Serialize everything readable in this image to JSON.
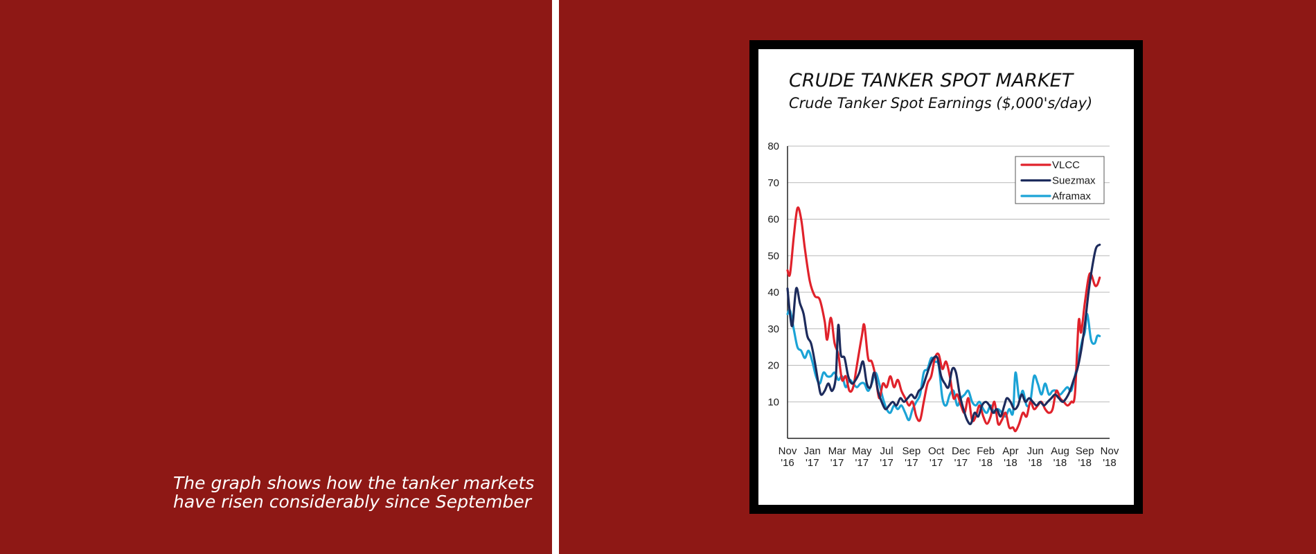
{
  "caption": {
    "line1": "The graph shows how the tanker markets",
    "line2": "have risen considerably since September"
  },
  "chart_data": {
    "type": "line",
    "title": "CRUDE TANKER SPOT MARKET",
    "subtitle": "Crude Tanker Spot Earnings ($,000's/day)",
    "xlabel": "",
    "ylabel": "",
    "ylim": [
      0,
      80
    ],
    "y_ticks": [
      10,
      20,
      30,
      40,
      50,
      60,
      70,
      80
    ],
    "grid": true,
    "legend_position": "top-right",
    "x_tick_labels": [
      {
        "month": "Nov",
        "year": "'16"
      },
      {
        "month": "Jan",
        "year": "'17"
      },
      {
        "month": "Mar",
        "year": "'17"
      },
      {
        "month": "May",
        "year": "'17"
      },
      {
        "month": "Jul",
        "year": "'17"
      },
      {
        "month": "Sep",
        "year": "'17"
      },
      {
        "month": "Oct",
        "year": "'17"
      },
      {
        "month": "Dec",
        "year": "'17"
      },
      {
        "month": "Feb",
        "year": "'18"
      },
      {
        "month": "Apr",
        "year": "'18"
      },
      {
        "month": "Jun",
        "year": "'18"
      },
      {
        "month": "Aug",
        "year": "'18"
      },
      {
        "month": "Sep",
        "year": "'18"
      },
      {
        "month": "Nov",
        "year": "'18"
      }
    ],
    "series": [
      {
        "name": "VLCC",
        "color": "#e0222b",
        "values": [
          [
            0,
            46
          ],
          [
            0.1,
            45
          ],
          [
            0.25,
            55
          ],
          [
            0.4,
            63
          ],
          [
            0.55,
            60
          ],
          [
            0.7,
            52
          ],
          [
            0.9,
            43
          ],
          [
            1.1,
            39
          ],
          [
            1.3,
            38
          ],
          [
            1.5,
            32
          ],
          [
            1.6,
            27
          ],
          [
            1.75,
            33
          ],
          [
            1.9,
            26
          ],
          [
            2.05,
            23
          ],
          [
            2.2,
            16
          ],
          [
            2.35,
            17
          ],
          [
            2.5,
            13
          ],
          [
            2.65,
            14
          ],
          [
            2.8,
            20
          ],
          [
            3.0,
            28
          ],
          [
            3.1,
            31
          ],
          [
            3.25,
            22
          ],
          [
            3.4,
            21
          ],
          [
            3.55,
            17
          ],
          [
            3.7,
            11
          ],
          [
            3.85,
            15
          ],
          [
            4.0,
            14
          ],
          [
            4.15,
            17
          ],
          [
            4.3,
            14
          ],
          [
            4.45,
            16
          ],
          [
            4.6,
            13
          ],
          [
            4.75,
            11
          ],
          [
            4.9,
            9
          ],
          [
            5.05,
            10
          ],
          [
            5.2,
            6
          ],
          [
            5.35,
            5
          ],
          [
            5.5,
            10
          ],
          [
            5.65,
            15
          ],
          [
            5.8,
            17
          ],
          [
            5.95,
            22
          ],
          [
            6.1,
            23
          ],
          [
            6.25,
            19
          ],
          [
            6.4,
            21
          ],
          [
            6.55,
            17
          ],
          [
            6.7,
            11
          ],
          [
            6.85,
            12
          ],
          [
            7.0,
            9
          ],
          [
            7.15,
            7
          ],
          [
            7.3,
            11
          ],
          [
            7.45,
            5
          ],
          [
            7.6,
            6
          ],
          [
            7.75,
            9
          ],
          [
            7.9,
            6
          ],
          [
            8.05,
            4
          ],
          [
            8.2,
            6
          ],
          [
            8.35,
            10
          ],
          [
            8.5,
            4
          ],
          [
            8.65,
            5
          ],
          [
            8.8,
            7
          ],
          [
            8.95,
            3
          ],
          [
            9.1,
            3
          ],
          [
            9.2,
            2
          ],
          [
            9.35,
            4
          ],
          [
            9.5,
            7
          ],
          [
            9.65,
            6
          ],
          [
            9.8,
            10
          ],
          [
            9.95,
            8
          ],
          [
            10.1,
            9
          ],
          [
            10.25,
            10
          ],
          [
            10.4,
            8
          ],
          [
            10.55,
            7
          ],
          [
            10.7,
            8
          ],
          [
            10.85,
            13
          ],
          [
            11.0,
            11
          ],
          [
            11.15,
            10
          ],
          [
            11.3,
            9
          ],
          [
            11.45,
            10
          ],
          [
            11.6,
            12
          ],
          [
            11.75,
            32
          ],
          [
            11.85,
            29
          ],
          [
            12.0,
            37
          ],
          [
            12.15,
            44
          ],
          [
            12.25,
            45
          ],
          [
            12.4,
            42
          ],
          [
            12.5,
            42
          ],
          [
            12.6,
            44
          ]
        ]
      },
      {
        "name": "Suezmax",
        "color": "#1d2b5c",
        "values": [
          [
            0,
            41
          ],
          [
            0.1,
            34
          ],
          [
            0.2,
            31
          ],
          [
            0.35,
            41
          ],
          [
            0.5,
            37
          ],
          [
            0.65,
            34
          ],
          [
            0.8,
            28
          ],
          [
            0.95,
            26
          ],
          [
            1.1,
            21
          ],
          [
            1.25,
            15
          ],
          [
            1.35,
            12
          ],
          [
            1.5,
            13
          ],
          [
            1.65,
            15
          ],
          [
            1.8,
            13
          ],
          [
            1.95,
            17
          ],
          [
            2.05,
            31
          ],
          [
            2.15,
            23
          ],
          [
            2.3,
            22
          ],
          [
            2.45,
            17
          ],
          [
            2.6,
            15
          ],
          [
            2.75,
            16
          ],
          [
            2.9,
            18
          ],
          [
            3.05,
            21
          ],
          [
            3.2,
            15
          ],
          [
            3.35,
            14
          ],
          [
            3.5,
            18
          ],
          [
            3.65,
            13
          ],
          [
            3.8,
            10
          ],
          [
            3.95,
            8
          ],
          [
            4.1,
            9
          ],
          [
            4.25,
            10
          ],
          [
            4.4,
            9
          ],
          [
            4.55,
            11
          ],
          [
            4.7,
            10
          ],
          [
            4.85,
            11
          ],
          [
            5.0,
            12
          ],
          [
            5.15,
            11
          ],
          [
            5.3,
            13
          ],
          [
            5.45,
            14
          ],
          [
            5.6,
            17
          ],
          [
            5.75,
            20
          ],
          [
            5.9,
            22
          ],
          [
            6.05,
            22
          ],
          [
            6.2,
            17
          ],
          [
            6.35,
            15
          ],
          [
            6.5,
            14
          ],
          [
            6.65,
            19
          ],
          [
            6.8,
            18
          ],
          [
            6.95,
            12
          ],
          [
            7.1,
            8
          ],
          [
            7.25,
            5
          ],
          [
            7.4,
            4
          ],
          [
            7.55,
            7
          ],
          [
            7.7,
            6
          ],
          [
            7.85,
            9
          ],
          [
            8.0,
            10
          ],
          [
            8.15,
            9
          ],
          [
            8.3,
            7
          ],
          [
            8.45,
            8
          ],
          [
            8.6,
            6
          ],
          [
            8.75,
            9
          ],
          [
            8.85,
            11
          ],
          [
            9.0,
            10
          ],
          [
            9.15,
            8
          ],
          [
            9.3,
            9
          ],
          [
            9.45,
            12
          ],
          [
            9.6,
            10
          ],
          [
            9.75,
            11
          ],
          [
            9.9,
            10
          ],
          [
            10.05,
            9
          ],
          [
            10.2,
            10
          ],
          [
            10.35,
            9
          ],
          [
            10.5,
            10
          ],
          [
            10.65,
            11
          ],
          [
            10.8,
            12
          ],
          [
            10.95,
            11
          ],
          [
            11.1,
            10
          ],
          [
            11.25,
            11
          ],
          [
            11.4,
            13
          ],
          [
            11.55,
            16
          ],
          [
            11.7,
            19
          ],
          [
            11.85,
            24
          ],
          [
            12.0,
            31
          ],
          [
            12.15,
            40
          ],
          [
            12.3,
            47
          ],
          [
            12.45,
            52
          ],
          [
            12.6,
            53
          ]
        ]
      },
      {
        "name": "Aframax",
        "color": "#1ba3d6",
        "values": [
          [
            0,
            34
          ],
          [
            0.1,
            35
          ],
          [
            0.25,
            30
          ],
          [
            0.4,
            25
          ],
          [
            0.55,
            24
          ],
          [
            0.7,
            22
          ],
          [
            0.85,
            24
          ],
          [
            1.0,
            21
          ],
          [
            1.15,
            17
          ],
          [
            1.3,
            15
          ],
          [
            1.45,
            18
          ],
          [
            1.6,
            17
          ],
          [
            1.75,
            17
          ],
          [
            1.9,
            18
          ],
          [
            2.05,
            16
          ],
          [
            2.2,
            17
          ],
          [
            2.35,
            14
          ],
          [
            2.5,
            16
          ],
          [
            2.65,
            15
          ],
          [
            2.8,
            14
          ],
          [
            2.95,
            15
          ],
          [
            3.1,
            15
          ],
          [
            3.25,
            13
          ],
          [
            3.4,
            15
          ],
          [
            3.55,
            18
          ],
          [
            3.7,
            15
          ],
          [
            3.85,
            11
          ],
          [
            4.0,
            8
          ],
          [
            4.15,
            7
          ],
          [
            4.3,
            9
          ],
          [
            4.45,
            8
          ],
          [
            4.6,
            9
          ],
          [
            4.75,
            7
          ],
          [
            4.9,
            5
          ],
          [
            5.05,
            8
          ],
          [
            5.2,
            10
          ],
          [
            5.35,
            12
          ],
          [
            5.5,
            18
          ],
          [
            5.65,
            19
          ],
          [
            5.8,
            22
          ],
          [
            5.95,
            21
          ],
          [
            6.1,
            20
          ],
          [
            6.25,
            11
          ],
          [
            6.4,
            9
          ],
          [
            6.55,
            12
          ],
          [
            6.7,
            13
          ],
          [
            6.85,
            9
          ],
          [
            7.0,
            11
          ],
          [
            7.15,
            12
          ],
          [
            7.3,
            13
          ],
          [
            7.45,
            10
          ],
          [
            7.6,
            9
          ],
          [
            7.75,
            10
          ],
          [
            7.9,
            8
          ],
          [
            8.05,
            7
          ],
          [
            8.2,
            9
          ],
          [
            8.35,
            7
          ],
          [
            8.5,
            8
          ],
          [
            8.65,
            7
          ],
          [
            8.8,
            6
          ],
          [
            8.95,
            8
          ],
          [
            9.1,
            7
          ],
          [
            9.2,
            18
          ],
          [
            9.35,
            11
          ],
          [
            9.5,
            13
          ],
          [
            9.65,
            9
          ],
          [
            9.8,
            10
          ],
          [
            9.95,
            17
          ],
          [
            10.1,
            15
          ],
          [
            10.25,
            12
          ],
          [
            10.4,
            15
          ],
          [
            10.55,
            12
          ],
          [
            10.7,
            13
          ],
          [
            10.85,
            13
          ],
          [
            11.0,
            12
          ],
          [
            11.15,
            13
          ],
          [
            11.3,
            14
          ],
          [
            11.45,
            13
          ],
          [
            11.6,
            17
          ],
          [
            11.75,
            22
          ],
          [
            11.9,
            27
          ],
          [
            12.0,
            29
          ],
          [
            12.1,
            34
          ],
          [
            12.25,
            27
          ],
          [
            12.4,
            26
          ],
          [
            12.5,
            28
          ],
          [
            12.6,
            28
          ]
        ]
      }
    ]
  }
}
